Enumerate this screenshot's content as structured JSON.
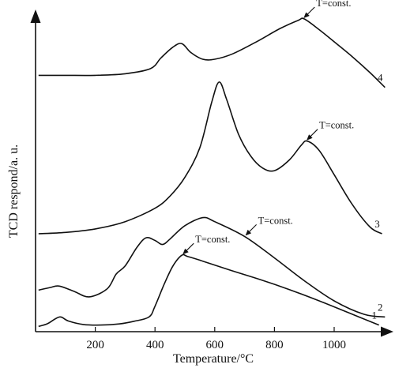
{
  "chart_data": {
    "type": "line",
    "title": "",
    "xlabel": "Temperature/°C",
    "ylabel": "TCD respond/a. u.",
    "xlim": [
      0,
      1200
    ],
    "xticks": [
      200,
      400,
      600,
      800,
      1000
    ],
    "y_ticks_shown": false,
    "grid": false,
    "legend": "none (curves labelled 1–4 at right end)",
    "series": [
      {
        "name": "1",
        "x": [
          10,
          40,
          80,
          110,
          160,
          220,
          280,
          330,
          380,
          400,
          430,
          460,
          490,
          510,
          560,
          650,
          750,
          850,
          950,
          1050,
          1150
        ],
        "y": [
          0.5,
          1.5,
          4.0,
          2.5,
          1.2,
          1.0,
          1.4,
          2.4,
          4.0,
          8.0,
          16.0,
          23.0,
          27.0,
          26.5,
          24.8,
          21.5,
          18.0,
          14.2,
          10.0,
          5.5,
          1.0
        ],
        "annotation": {
          "text": "T=const.",
          "x": 490,
          "y": 27.0
        }
      },
      {
        "name": "2",
        "x": [
          10,
          50,
          80,
          130,
          180,
          240,
          270,
          300,
          340,
          370,
          400,
          425,
          450,
          500,
          560,
          600,
          700,
          800,
          900,
          1000,
          1100,
          1170
        ],
        "y": [
          14.0,
          15.0,
          15.5,
          13.5,
          11.5,
          14.5,
          20.0,
          23.0,
          30.0,
          33.5,
          32.5,
          31.0,
          33.0,
          38.0,
          41.0,
          39.5,
          34.0,
          26.0,
          17.5,
          10.0,
          5.0,
          4.0
        ],
        "annotation": {
          "text": "T=const.",
          "x": 700,
          "y": 34.0
        }
      },
      {
        "name": "3",
        "x": [
          10,
          100,
          200,
          300,
          400,
          450,
          500,
          550,
          590,
          615,
          640,
          680,
          720,
          760,
          800,
          850,
          890,
          910,
          950,
          1000,
          1060,
          1120,
          1160
        ],
        "y": [
          35.0,
          35.5,
          36.8,
          39.5,
          44.5,
          49.0,
          56.0,
          67.0,
          84.0,
          91.5,
          85.0,
          72.0,
          64.0,
          59.5,
          58.5,
          62.5,
          68.0,
          69.5,
          66.0,
          57.0,
          46.0,
          37.5,
          35.0
        ],
        "annotation": {
          "text": "T=const.",
          "x": 905,
          "y": 69.5
        }
      },
      {
        "name": "4",
        "x": [
          10,
          100,
          200,
          300,
          385,
          420,
          460,
          490,
          520,
          560,
          600,
          660,
          740,
          820,
          880,
          900,
          950,
          1000,
          1060,
          1120,
          1170
        ],
        "y": [
          94.0,
          94.0,
          94.0,
          94.6,
          96.5,
          100.5,
          104.5,
          105.8,
          102.5,
          100.0,
          100.0,
          102.0,
          106.5,
          111.5,
          114.5,
          115.0,
          111.0,
          106.5,
          101.0,
          95.0,
          89.5
        ],
        "annotation": {
          "text": "T=const.",
          "x": 895,
          "y": 115.0
        }
      }
    ]
  }
}
